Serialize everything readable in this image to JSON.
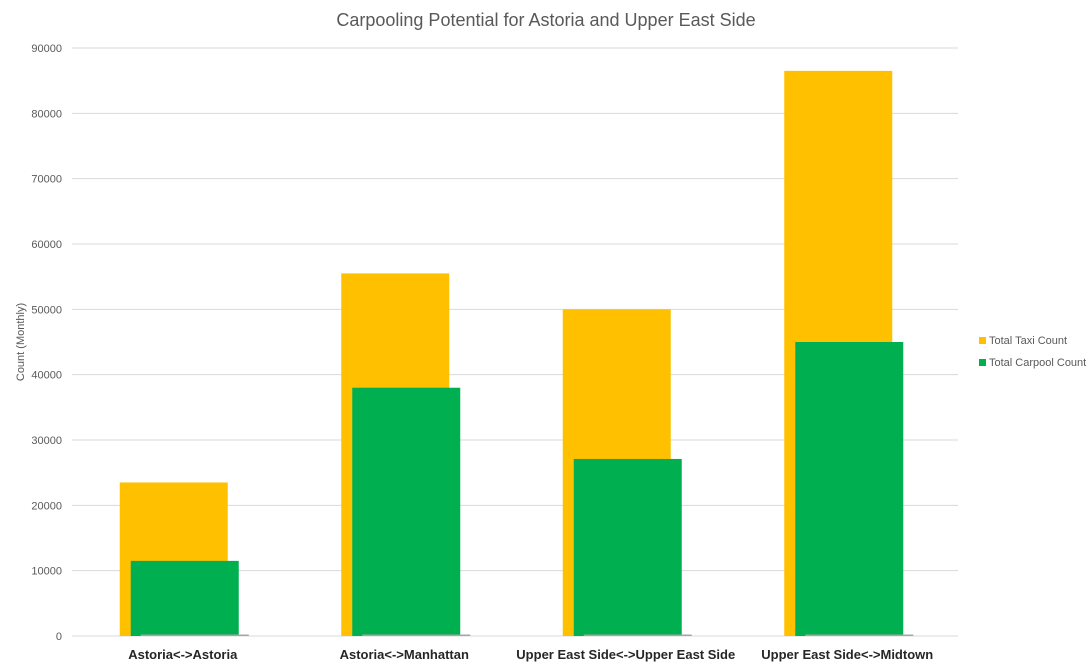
{
  "chart_data": {
    "type": "bar",
    "title": "Carpooling Potential for Astoria and Upper East Side",
    "xlabel": "",
    "ylabel": "Count (Monthly)",
    "ylim": [
      0,
      90000
    ],
    "yticks": [
      0,
      10000,
      20000,
      30000,
      40000,
      50000,
      60000,
      70000,
      80000,
      90000
    ],
    "grid": true,
    "legend_position": "right",
    "categories": [
      "Astoria<->Astoria",
      "Astoria<->Manhattan",
      "Upper East Side<->Upper East Side",
      "Upper East Side<->Midtown"
    ],
    "series": [
      {
        "name": "Total Taxi Count",
        "color": "#FFC000",
        "values": [
          23500,
          55500,
          50000,
          86500
        ]
      },
      {
        "name": "Total Carpool Count",
        "color": "#00B050",
        "values": [
          11500,
          38000,
          27100,
          45000
        ]
      }
    ]
  }
}
